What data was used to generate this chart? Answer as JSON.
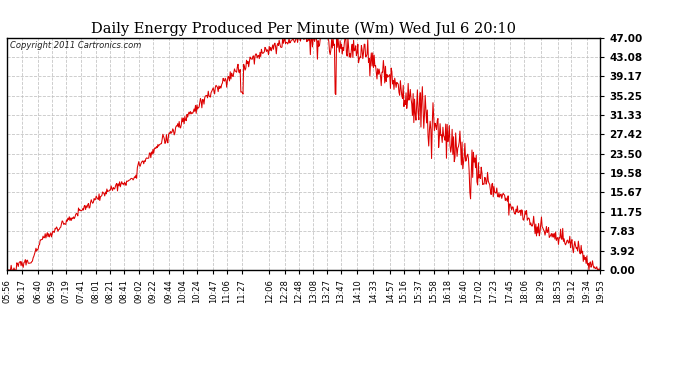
{
  "title": "Daily Energy Produced Per Minute (Wm) Wed Jul 6 20:10",
  "copyright": "Copyright 2011 Cartronics.com",
  "line_color": "#dd0000",
  "background_color": "#ffffff",
  "plot_bg_color": "#ffffff",
  "grid_color": "#c0c0c0",
  "yticks": [
    0.0,
    3.92,
    7.83,
    11.75,
    15.67,
    19.58,
    23.5,
    27.42,
    31.33,
    35.25,
    39.17,
    43.08,
    47.0
  ],
  "ymax": 47.0,
  "ymin": 0.0,
  "xtick_labels": [
    "05:56",
    "06:17",
    "06:40",
    "06:59",
    "07:19",
    "07:41",
    "08:01",
    "08:21",
    "08:41",
    "09:02",
    "09:22",
    "09:44",
    "10:04",
    "10:24",
    "10:47",
    "11:06",
    "11:27",
    "12:06",
    "12:28",
    "12:48",
    "13:08",
    "13:27",
    "13:47",
    "14:10",
    "14:33",
    "14:57",
    "15:16",
    "15:37",
    "15:58",
    "16:18",
    "16:40",
    "17:02",
    "17:23",
    "17:45",
    "18:06",
    "18:29",
    "18:53",
    "19:12",
    "19:34",
    "19:53"
  ]
}
